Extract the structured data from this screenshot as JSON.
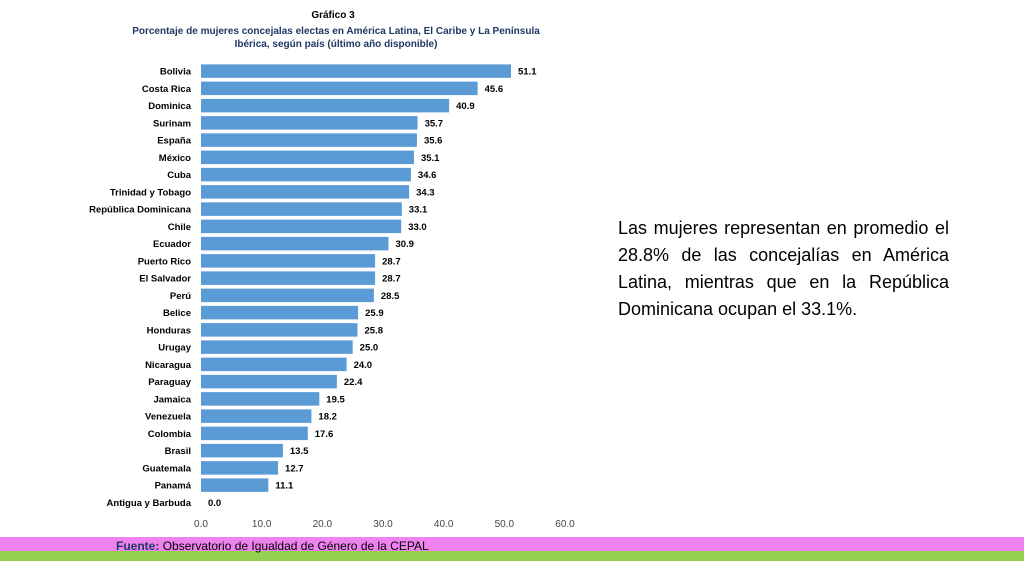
{
  "header": {
    "kicker": "Gráfico 3",
    "title_line1": "Porcentaje de mujeres concejalas electas en América Latina, El Caribe y La Península",
    "title_line2": "Ibérica, según país (último año disponible)"
  },
  "note": "Las mujeres representan en promedio el 28.8% de las concejalías en América Latina, mientras que en la República Dominicana ocupan el 33.1%.",
  "footer": {
    "source_label": "Fuente:",
    "source_text": "Observatorio de Igualdad de Género de la CEPAL"
  },
  "colors": {
    "bar": "#5b9bd5",
    "footer_band_top": "#ee82ee",
    "footer_band_bottom": "#92d050"
  },
  "chart_data": {
    "type": "bar",
    "orientation": "horizontal",
    "title": "Porcentaje de mujeres concejalas electas en América Latina, El Caribe y La Península Ibérica, según país (último año disponible)",
    "xlabel": "",
    "ylabel": "",
    "xlim": [
      0,
      60
    ],
    "xticks": [
      "0.0",
      "10.0",
      "20.0",
      "30.0",
      "40.0",
      "50.0",
      "60.0"
    ],
    "grid": false,
    "categories": [
      "Bolivia",
      "Costa Rica",
      "Dominica",
      "Surinam",
      "España",
      "México",
      "Cuba",
      "Trinidad y Tobago",
      "República Dominicana",
      "Chile",
      "Ecuador",
      "Puerto Rico",
      "El Salvador",
      "Perú",
      "Belice",
      "Honduras",
      "Urugay",
      "Nicaragua",
      "Paraguay",
      "Jamaica",
      "Venezuela",
      "Colombia",
      "Brasil",
      "Guatemala",
      "Panamá",
      "Antigua y Barbuda"
    ],
    "values": [
      51.1,
      45.6,
      40.9,
      35.7,
      35.6,
      35.1,
      34.6,
      34.3,
      33.1,
      33.0,
      30.9,
      28.7,
      28.7,
      28.5,
      25.9,
      25.8,
      25.0,
      24.0,
      22.4,
      19.5,
      18.2,
      17.6,
      13.5,
      12.7,
      11.1,
      0.0
    ],
    "value_labels": [
      "51.1",
      "45.6",
      "40.9",
      "35.7",
      "35.6",
      "35.1",
      "34.6",
      "34.3",
      "33.1",
      "33.0",
      "30.9",
      "28.7",
      "28.7",
      "28.5",
      "25.9",
      "25.8",
      "25.0",
      "24.0",
      "22.4",
      "19.5",
      "18.2",
      "17.6",
      "13.5",
      "12.7",
      "11.1",
      "0.0"
    ]
  }
}
